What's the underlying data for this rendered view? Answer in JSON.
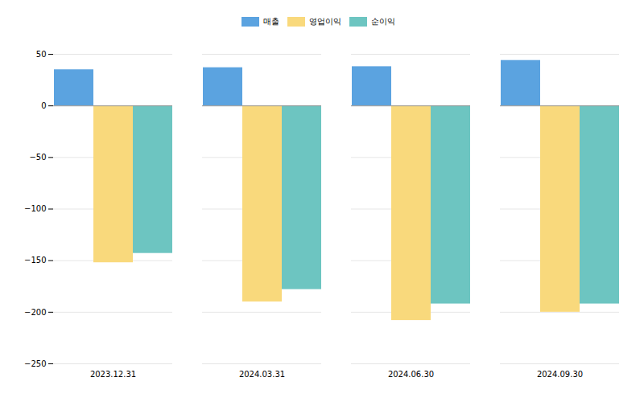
{
  "chart_data": {
    "type": "bar",
    "categories": [
      "2023.12.31",
      "2024.03.31",
      "2024.06.30",
      "2024.09.30"
    ],
    "series": [
      {
        "name": "매출",
        "color": "#5BA3E0",
        "values": [
          35,
          37,
          38,
          44
        ]
      },
      {
        "name": "영업이익",
        "color": "#F9D97C",
        "values": [
          -152,
          -190,
          -208,
          -200
        ]
      },
      {
        "name": "순이익",
        "color": "#6DC5C1",
        "values": [
          -143,
          -178,
          -192,
          -192
        ]
      }
    ],
    "ylim": [
      -250,
      50
    ],
    "yticks": [
      -250,
      -200,
      -150,
      -100,
      -50,
      0,
      50
    ],
    "grid": true,
    "legend": "top"
  }
}
